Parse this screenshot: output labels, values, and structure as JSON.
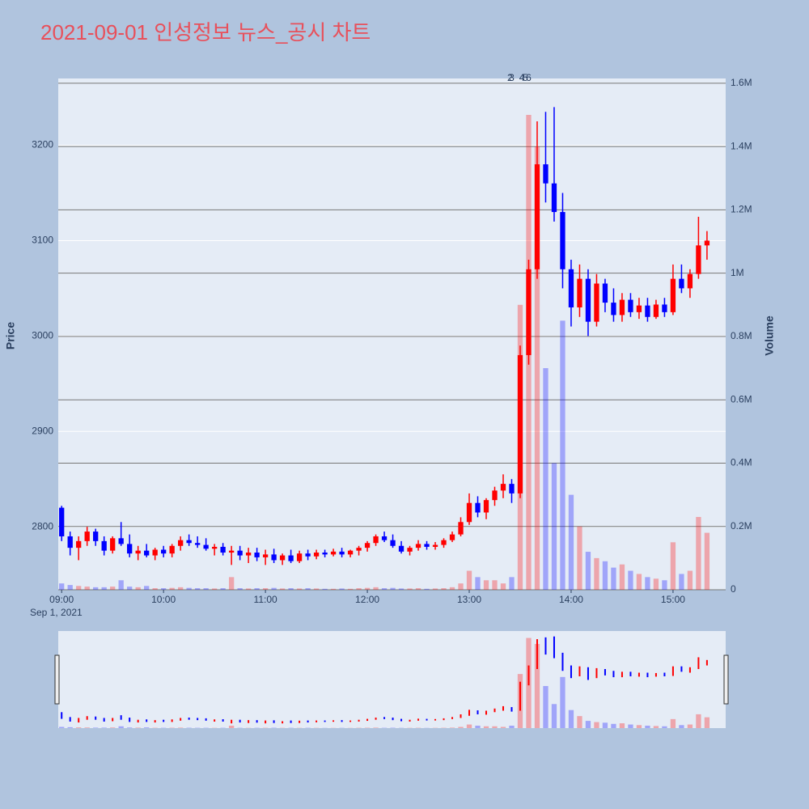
{
  "chart_data": {
    "type": "candlestick",
    "title": "2021-09-01 인성정보 뉴스_공시 차트",
    "y_label": "Price",
    "y2_label": "Volume",
    "increasing_color": "#ff0000",
    "decreasing_color": "#0000ff",
    "xlim": [
      "2021-09-01 08:58",
      "2021-09-01 15:31"
    ],
    "xticks": [
      {
        "value": "2021-09-01 09:00",
        "label": "09:00"
      },
      {
        "value": "2021-09-01 10:00",
        "label": "10:00"
      },
      {
        "value": "2021-09-01 11:00",
        "label": "11:00"
      },
      {
        "value": "2021-09-01 12:00",
        "label": "12:00"
      },
      {
        "value": "2021-09-01 13:00",
        "label": "13:00"
      },
      {
        "value": "2021-09-01 14:00",
        "label": "14:00"
      },
      {
        "value": "2021-09-01 15:00",
        "label": "15:00"
      }
    ],
    "x_date_label": "Sep 1, 2021",
    "ylim": [
      2734,
      3270
    ],
    "yticks": [
      2800,
      2900,
      3000,
      3100,
      3200
    ],
    "y2lim": [
      0,
      1615000
    ],
    "y2ticks": [
      0,
      {
        "value": 200000,
        "label": "0.2M"
      },
      {
        "value": 400000,
        "label": "0.4M"
      },
      {
        "value": 600000,
        "label": "0.6M"
      },
      {
        "value": 800000,
        "label": "0.8M"
      },
      {
        "value": 1000000,
        "label": "1M"
      },
      {
        "value": 1200000,
        "label": "1.2M"
      },
      {
        "value": 1400000,
        "label": "1.4M"
      },
      {
        "value": 1600000,
        "label": "1.6M"
      }
    ],
    "annotations": [
      {
        "x": "2021-09-01 13:24",
        "text": "2"
      },
      {
        "x": "2021-09-01 13:25",
        "text": "3"
      },
      {
        "x": "2021-09-01 13:31",
        "text": "4"
      },
      {
        "x": "2021-09-01 13:33",
        "text": "5"
      },
      {
        "x": "2021-09-01 13:35",
        "text": "6"
      }
    ],
    "x": [
      "2021-09-01 09:00",
      "2021-09-01 09:05",
      "2021-09-01 09:10",
      "2021-09-01 09:15",
      "2021-09-01 09:20",
      "2021-09-01 09:25",
      "2021-09-01 09:30",
      "2021-09-01 09:35",
      "2021-09-01 09:40",
      "2021-09-01 09:45",
      "2021-09-01 09:50",
      "2021-09-01 09:55",
      "2021-09-01 10:00",
      "2021-09-01 10:05",
      "2021-09-01 10:10",
      "2021-09-01 10:15",
      "2021-09-01 10:20",
      "2021-09-01 10:25",
      "2021-09-01 10:30",
      "2021-09-01 10:35",
      "2021-09-01 10:40",
      "2021-09-01 10:45",
      "2021-09-01 10:50",
      "2021-09-01 10:55",
      "2021-09-01 11:00",
      "2021-09-01 11:05",
      "2021-09-01 11:10",
      "2021-09-01 11:15",
      "2021-09-01 11:20",
      "2021-09-01 11:25",
      "2021-09-01 11:30",
      "2021-09-01 11:35",
      "2021-09-01 11:40",
      "2021-09-01 11:45",
      "2021-09-01 11:50",
      "2021-09-01 11:55",
      "2021-09-01 12:00",
      "2021-09-01 12:05",
      "2021-09-01 12:10",
      "2021-09-01 12:15",
      "2021-09-01 12:20",
      "2021-09-01 12:25",
      "2021-09-01 12:30",
      "2021-09-01 12:35",
      "2021-09-01 12:40",
      "2021-09-01 12:45",
      "2021-09-01 12:50",
      "2021-09-01 12:55",
      "2021-09-01 13:00",
      "2021-09-01 13:05",
      "2021-09-01 13:10",
      "2021-09-01 13:15",
      "2021-09-01 13:20",
      "2021-09-01 13:25",
      "2021-09-01 13:30",
      "2021-09-01 13:35",
      "2021-09-01 13:40",
      "2021-09-01 13:45",
      "2021-09-01 13:50",
      "2021-09-01 13:55",
      "2021-09-01 14:00",
      "2021-09-01 14:05",
      "2021-09-01 14:10",
      "2021-09-01 14:15",
      "2021-09-01 14:20",
      "2021-09-01 14:25",
      "2021-09-01 14:30",
      "2021-09-01 14:35",
      "2021-09-01 14:40",
      "2021-09-01 14:45",
      "2021-09-01 14:50",
      "2021-09-01 14:55",
      "2021-09-01 15:00",
      "2021-09-01 15:05",
      "2021-09-01 15:10",
      "2021-09-01 15:15",
      "2021-09-01 15:20"
    ],
    "open": [
      2820,
      2790,
      2778,
      2785,
      2795,
      2785,
      2775,
      2788,
      2782,
      2772,
      2775,
      2770,
      2776,
      2772,
      2780,
      2786,
      2783,
      2781,
      2777,
      2779,
      2773,
      2775,
      2770,
      2773,
      2768,
      2771,
      2765,
      2770,
      2764,
      2772,
      2769,
      2773,
      2771,
      2774,
      2771,
      2775,
      2778,
      2783,
      2790,
      2786,
      2780,
      2774,
      2778,
      2782,
      2779,
      2781,
      2786,
      2792,
      2805,
      2825,
      2815,
      2828,
      2838,
      2845,
      2835,
      2980,
      3070,
      3180,
      3160,
      3130,
      3070,
      3030,
      3060,
      3015,
      3055,
      3035,
      3022,
      3038,
      3025,
      3032,
      3020,
      3033,
      3025,
      3060,
      3050,
      3065,
      3095
    ],
    "high": [
      2822,
      2795,
      2790,
      2800,
      2798,
      2790,
      2790,
      2805,
      2792,
      2780,
      2782,
      2778,
      2780,
      2782,
      2790,
      2792,
      2790,
      2788,
      2782,
      2783,
      2780,
      2780,
      2778,
      2778,
      2776,
      2777,
      2772,
      2776,
      2775,
      2776,
      2776,
      2776,
      2777,
      2778,
      2776,
      2780,
      2785,
      2792,
      2795,
      2792,
      2785,
      2780,
      2786,
      2785,
      2784,
      2788,
      2795,
      2810,
      2835,
      2832,
      2830,
      2842,
      2855,
      2850,
      2990,
      3080,
      3225,
      3235,
      3240,
      3150,
      3080,
      3075,
      3070,
      3065,
      3060,
      3050,
      3045,
      3045,
      3040,
      3040,
      3038,
      3040,
      3075,
      3075,
      3070,
      3125,
      3110
    ],
    "low": [
      2785,
      2770,
      2765,
      2780,
      2780,
      2770,
      2772,
      2780,
      2768,
      2765,
      2768,
      2765,
      2768,
      2768,
      2775,
      2780,
      2778,
      2775,
      2770,
      2770,
      2760,
      2765,
      2762,
      2764,
      2760,
      2762,
      2760,
      2762,
      2762,
      2765,
      2766,
      2768,
      2769,
      2768,
      2768,
      2770,
      2774,
      2780,
      2784,
      2778,
      2772,
      2770,
      2775,
      2776,
      2776,
      2778,
      2784,
      2790,
      2802,
      2810,
      2808,
      2822,
      2830,
      2825,
      2830,
      2970,
      3060,
      3140,
      3120,
      3050,
      3010,
      3020,
      3000,
      3010,
      3025,
      3015,
      3015,
      3020,
      3018,
      3015,
      3018,
      3020,
      3022,
      3045,
      3040,
      3060,
      3080
    ],
    "close": [
      2790,
      2778,
      2785,
      2795,
      2785,
      2775,
      2788,
      2782,
      2772,
      2775,
      2770,
      2776,
      2772,
      2780,
      2786,
      2783,
      2781,
      2777,
      2779,
      2773,
      2775,
      2770,
      2773,
      2768,
      2771,
      2765,
      2770,
      2764,
      2772,
      2769,
      2773,
      2771,
      2774,
      2771,
      2775,
      2778,
      2783,
      2790,
      2786,
      2780,
      2774,
      2778,
      2782,
      2779,
      2781,
      2786,
      2792,
      2805,
      2825,
      2815,
      2828,
      2838,
      2845,
      2835,
      2980,
      3070,
      3180,
      3160,
      3130,
      3070,
      3030,
      3060,
      3015,
      3055,
      3035,
      3022,
      3038,
      3025,
      3032,
      3020,
      3033,
      3025,
      3060,
      3050,
      3065,
      3095,
      3100
    ],
    "volume": [
      20000,
      15000,
      12000,
      10000,
      8000,
      8000,
      10000,
      30000,
      10000,
      8000,
      12000,
      5000,
      5000,
      6000,
      8000,
      6000,
      5000,
      5000,
      4000,
      5000,
      40000,
      5000,
      4000,
      5000,
      5000,
      6000,
      4000,
      5000,
      4000,
      5000,
      4000,
      3000,
      3000,
      4000,
      3000,
      5000,
      6000,
      8000,
      5000,
      6000,
      4000,
      4000,
      5000,
      3000,
      4000,
      5000,
      8000,
      20000,
      60000,
      40000,
      30000,
      30000,
      20000,
      40000,
      900000,
      1500000,
      1400000,
      700000,
      400000,
      850000,
      300000,
      200000,
      120000,
      100000,
      90000,
      70000,
      80000,
      60000,
      50000,
      40000,
      35000,
      30000,
      150000,
      50000,
      60000,
      230000,
      180000
    ]
  }
}
